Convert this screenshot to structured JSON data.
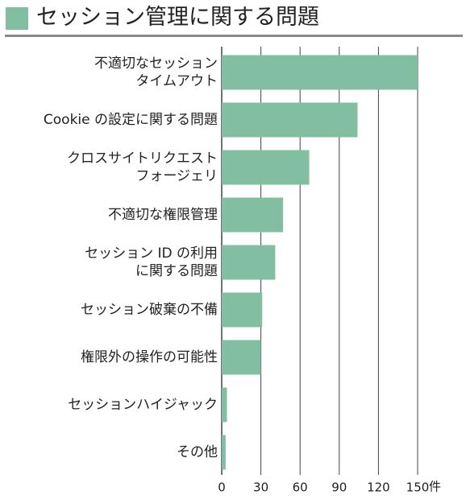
{
  "title": "セッション管理に関する問題",
  "colors": {
    "bar": "#82bfa2",
    "grid": "#444444",
    "rule": "#8a8a8a"
  },
  "chart_data": {
    "type": "bar",
    "orientation": "horizontal",
    "title": "セッション管理に関する問題",
    "categories": [
      [
        "不適切なセッション",
        "タイムアウト"
      ],
      [
        "Cookie の設定に関する問題"
      ],
      [
        "クロスサイトリクエスト",
        "フォージェリ"
      ],
      [
        "不適切な権限管理"
      ],
      [
        "セッション ID の利用",
        "に関する問題"
      ],
      [
        "セッション破棄の不備"
      ],
      [
        "権限外の操作の可能性"
      ],
      [
        "セッションハイジャック"
      ],
      [
        "その他"
      ]
    ],
    "values": [
      150,
      104,
      67,
      47,
      41,
      31,
      30,
      4,
      3
    ],
    "xlim": [
      0,
      150
    ],
    "xticks": [
      "0",
      "30",
      "60",
      "90",
      "120",
      "150"
    ],
    "xunit": "件",
    "grid": true
  }
}
